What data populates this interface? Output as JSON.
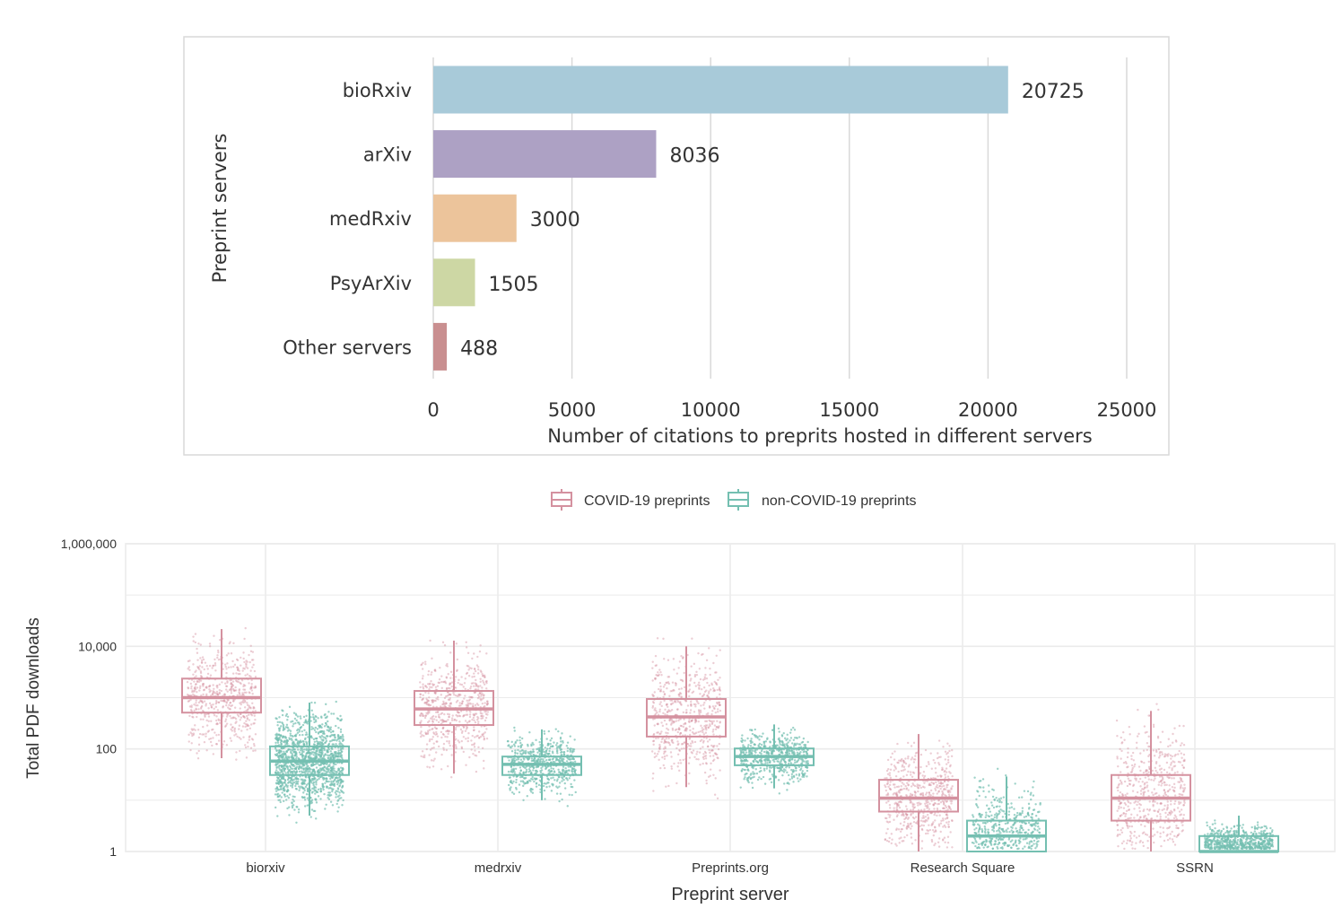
{
  "chart_data": [
    {
      "type": "bar",
      "orientation": "horizontal",
      "ylabel": "Preprint servers",
      "xlabel": "Number of citations to preprits hosted in different servers",
      "categories": [
        "bioRxiv",
        "arXiv",
        "medRxiv",
        "PsyArXiv",
        "Other servers"
      ],
      "values": [
        20725,
        8036,
        3000,
        1505,
        488
      ],
      "value_labels": [
        "20725",
        "8036",
        "3000",
        "1505",
        "488"
      ],
      "colors": [
        "#a8cad9",
        "#ada1c4",
        "#ecc49b",
        "#cdd7a4",
        "#c98f90"
      ],
      "xlim": [
        0,
        25000
      ],
      "xticks": [
        0,
        5000,
        10000,
        15000,
        20000,
        25000
      ],
      "xtick_labels": [
        "0",
        "5000",
        "10000",
        "15000",
        "20000",
        "25000"
      ],
      "grid": "vertical"
    },
    {
      "type": "box",
      "xlabel": "Preprint server",
      "ylabel": "Total PDF downloads",
      "yscale": "log",
      "ylim": [
        1,
        1000000
      ],
      "yticks": [
        1,
        100,
        10000,
        1000000
      ],
      "ytick_labels": [
        "1",
        "100",
        "10,000",
        "1,000,000"
      ],
      "categories": [
        "biorxiv",
        "medrxiv",
        "Preprints.org",
        "Research Square",
        "SSRN"
      ],
      "legend_position": "top",
      "grid": true,
      "jittered_points": true,
      "series": [
        {
          "name": "COVID-19 preprints",
          "color": "#d4919f",
          "boxes": [
            {
              "whisker_low": 66,
              "q1": 510,
              "median": 1000,
              "q3": 2350,
              "whisker_high": 21700
            },
            {
              "whisker_low": 33,
              "q1": 292,
              "median": 600,
              "q3": 1350,
              "whisker_high": 12900
            },
            {
              "whisker_low": 18,
              "q1": 174,
              "median": 420,
              "q3": 940,
              "whisker_high": 10000
            },
            {
              "whisker_low": 1,
              "q1": 6,
              "median": 11,
              "q3": 25,
              "whisker_high": 195
            },
            {
              "whisker_low": 1,
              "q1": 4,
              "median": 11,
              "q3": 31,
              "whisker_high": 550
            }
          ]
        },
        {
          "name": "non-COVID-19 preprints",
          "color": "#74bfb1",
          "boxes": [
            {
              "whisker_low": 5,
              "q1": 31,
              "median": 58,
              "q3": 112,
              "whisker_high": 800
            },
            {
              "whisker_low": 10,
              "q1": 31,
              "median": 50,
              "q3": 71,
              "whisker_high": 240
            },
            {
              "whisker_low": 17,
              "q1": 48,
              "median": 71,
              "q3": 102,
              "whisker_high": 300
            },
            {
              "whisker_low": 1,
              "q1": 1,
              "median": 2,
              "q3": 4,
              "whisker_high": 29
            },
            {
              "whisker_low": 1,
              "q1": 1,
              "median": 1,
              "q3": 2,
              "whisker_high": 5
            }
          ]
        }
      ]
    }
  ]
}
